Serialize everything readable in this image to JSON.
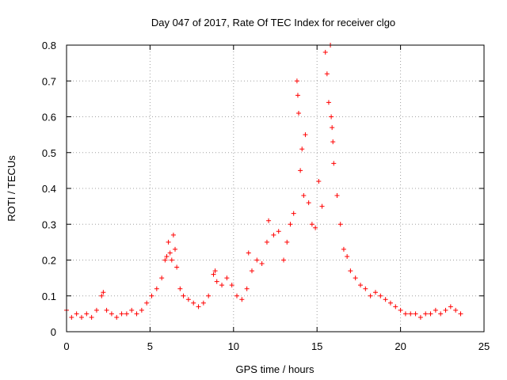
{
  "chart_data": {
    "type": "scatter",
    "title": "Day 047 of 2017, Rate Of TEC Index for receiver clgo",
    "xlabel": "GPS time / hours",
    "ylabel": "ROTI / TECUs",
    "xlim": [
      0,
      25
    ],
    "ylim": [
      0,
      0.8
    ],
    "x_ticks": [
      "0",
      "5",
      "10",
      "15",
      "20",
      "25"
    ],
    "y_ticks": [
      "0",
      "0.1",
      "0.2",
      "0.3",
      "0.4",
      "0.5",
      "0.6",
      "0.7",
      "0.8"
    ],
    "grid": true,
    "marker": "+",
    "color": "#ff0000",
    "series": [
      {
        "x": [
          0.0,
          0.3,
          0.6,
          0.9,
          1.2,
          1.5,
          1.8,
          2.1,
          2.2,
          2.4,
          2.7,
          3.0,
          3.3,
          3.6,
          3.9,
          4.2,
          4.5,
          4.8,
          5.1,
          5.4,
          5.7,
          5.9,
          6.0,
          6.1,
          6.2,
          6.3,
          6.4,
          6.5,
          6.6,
          6.8,
          7.0,
          7.3,
          7.6,
          7.9,
          8.2,
          8.5,
          8.8,
          8.9,
          9.0,
          9.3,
          9.6,
          9.9,
          10.2,
          10.5,
          10.8,
          10.9,
          11.1,
          11.4,
          11.7,
          12.0,
          12.1,
          12.4,
          12.7,
          13.0,
          13.2,
          13.4,
          13.6,
          13.8,
          13.85,
          13.9,
          14.0,
          14.1,
          14.2,
          14.3,
          14.5,
          14.7,
          14.9,
          15.1,
          15.3,
          15.5,
          15.6,
          15.7,
          15.8,
          15.85,
          15.9,
          15.95,
          16.0,
          16.2,
          16.4,
          16.6,
          16.8,
          17.0,
          17.3,
          17.6,
          17.9,
          18.2,
          18.5,
          18.8,
          19.1,
          19.4,
          19.7,
          20.0,
          20.3,
          20.6,
          20.9,
          21.2,
          21.5,
          21.8,
          22.1,
          22.4,
          22.7,
          23.0,
          23.3,
          23.6
        ],
        "y": [
          0.06,
          0.04,
          0.05,
          0.04,
          0.05,
          0.04,
          0.06,
          0.1,
          0.11,
          0.06,
          0.05,
          0.04,
          0.05,
          0.05,
          0.06,
          0.05,
          0.06,
          0.08,
          0.1,
          0.12,
          0.15,
          0.2,
          0.21,
          0.25,
          0.22,
          0.2,
          0.27,
          0.23,
          0.18,
          0.12,
          0.1,
          0.09,
          0.08,
          0.07,
          0.08,
          0.1,
          0.16,
          0.17,
          0.14,
          0.13,
          0.15,
          0.13,
          0.1,
          0.09,
          0.12,
          0.22,
          0.17,
          0.2,
          0.19,
          0.25,
          0.31,
          0.27,
          0.28,
          0.2,
          0.25,
          0.3,
          0.33,
          0.7,
          0.66,
          0.61,
          0.45,
          0.51,
          0.38,
          0.55,
          0.36,
          0.3,
          0.29,
          0.42,
          0.35,
          0.78,
          0.72,
          0.64,
          0.8,
          0.6,
          0.57,
          0.53,
          0.47,
          0.38,
          0.3,
          0.23,
          0.21,
          0.17,
          0.15,
          0.13,
          0.12,
          0.1,
          0.11,
          0.1,
          0.09,
          0.08,
          0.07,
          0.06,
          0.05,
          0.05,
          0.05,
          0.04,
          0.05,
          0.05,
          0.06,
          0.05,
          0.06,
          0.07,
          0.06,
          0.05
        ]
      }
    ]
  }
}
